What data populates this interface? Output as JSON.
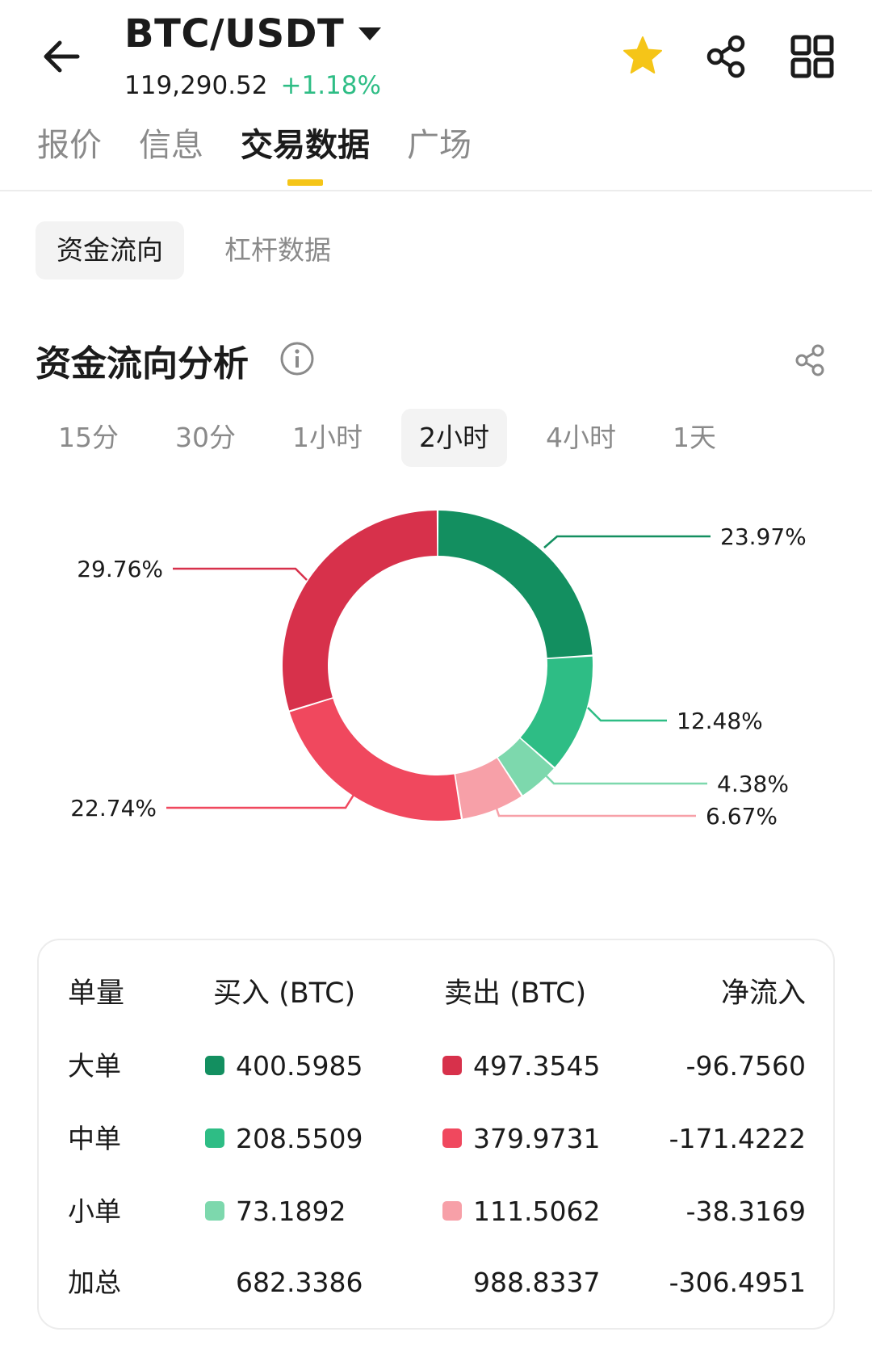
{
  "header": {
    "pair": "BTC/USDT",
    "price": "119,290.52",
    "change": "+1.18%",
    "colors": {
      "up": "#2ebd85",
      "star": "#f5c518"
    }
  },
  "main_tabs": [
    {
      "label": "报价"
    },
    {
      "label": "信息"
    },
    {
      "label": "交易数据"
    },
    {
      "label": "广场"
    }
  ],
  "sub_tabs": [
    {
      "label": "资金流向"
    },
    {
      "label": "杠杆数据"
    }
  ],
  "section": {
    "title": "资金流向分析"
  },
  "time_filters": [
    {
      "label": "15分"
    },
    {
      "label": "30分"
    },
    {
      "label": "1小时"
    },
    {
      "label": "2小时"
    },
    {
      "label": "4小时"
    },
    {
      "label": "1天"
    }
  ],
  "chart_data": {
    "type": "pie",
    "donut": true,
    "slices": [
      {
        "value": 23.97,
        "label": "23.97%",
        "color": "#138f60"
      },
      {
        "value": 12.48,
        "label": "12.48%",
        "color": "#2ebd85"
      },
      {
        "value": 4.38,
        "label": "4.38%",
        "color": "#7dd8ad"
      },
      {
        "value": 6.67,
        "label": "6.67%",
        "color": "#f7a0a8"
      },
      {
        "value": 22.74,
        "label": "22.74%",
        "color": "#f0485e"
      },
      {
        "value": 29.76,
        "label": "29.76%",
        "color": "#d7314b"
      }
    ]
  },
  "table": {
    "headers": [
      "单量",
      "买入 (BTC)",
      "卖出 (BTC)",
      "净流入"
    ],
    "rows": [
      {
        "label": "大单",
        "buy": "400.5985",
        "sell": "497.3545",
        "net": "-96.7560",
        "buy_color": "#138f60",
        "sell_color": "#d7314b"
      },
      {
        "label": "中单",
        "buy": "208.5509",
        "sell": "379.9731",
        "net": "-171.4222",
        "buy_color": "#2ebd85",
        "sell_color": "#f0485e"
      },
      {
        "label": "小单",
        "buy": "73.1892",
        "sell": "111.5062",
        "net": "-38.3169",
        "buy_color": "#7dd8ad",
        "sell_color": "#f7a0a8"
      }
    ],
    "total": {
      "label": "加总",
      "buy": "682.3386",
      "sell": "988.8337",
      "net": "-306.4951"
    }
  }
}
